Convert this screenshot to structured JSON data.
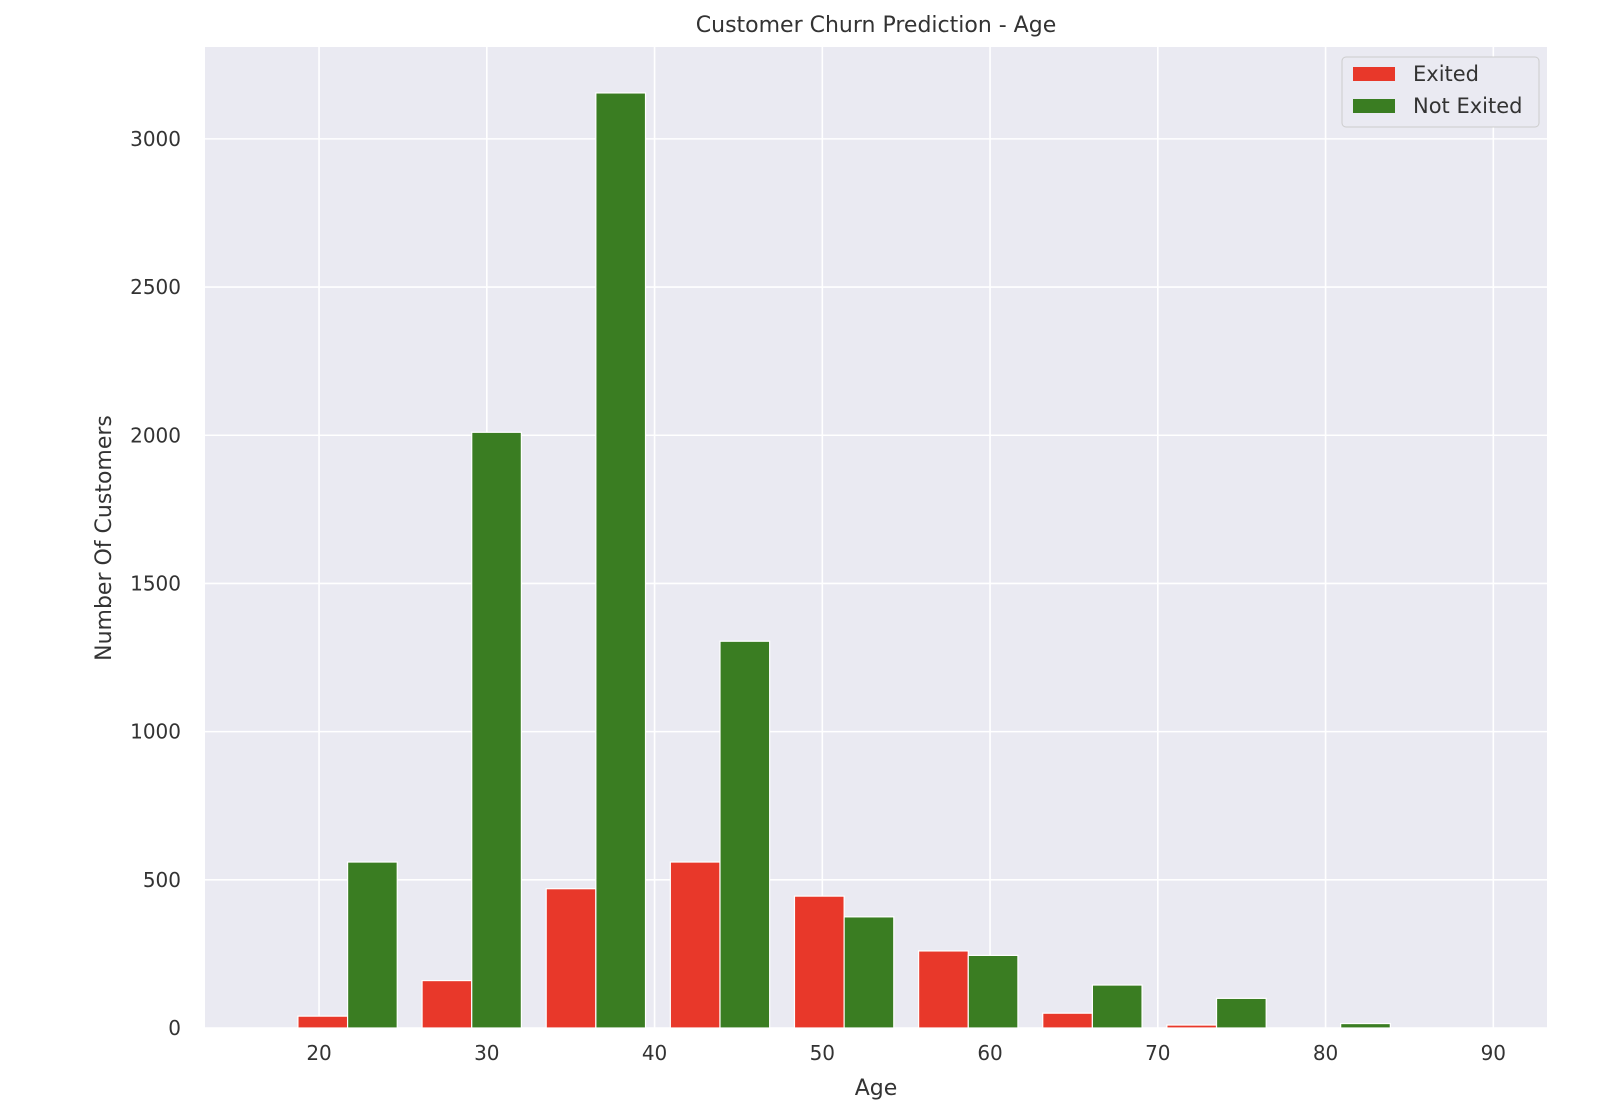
{
  "chart_data": {
    "type": "bar",
    "title": "Customer Churn Prediction - Age",
    "xlabel": "Age",
    "ylabel": "Number Of Customers",
    "bin_edges": [
      18,
      25.4,
      32.8,
      40.2,
      47.6,
      55.0,
      62.4,
      69.8,
      77.2,
      84.6,
      92.0
    ],
    "series": [
      {
        "name": "Exited",
        "color": "#e8382a",
        "values": [
          40,
          160,
          470,
          560,
          445,
          260,
          50,
          10,
          0,
          0
        ]
      },
      {
        "name": "Not Exited",
        "color": "#3a7d22",
        "values": [
          560,
          2010,
          3155,
          1305,
          375,
          245,
          145,
          100,
          15,
          0
        ]
      }
    ],
    "xlim": [
      13.2,
      93.2
    ],
    "ylim": [
      0,
      3310
    ],
    "xticks": [
      20,
      30,
      40,
      50,
      60,
      70,
      80,
      90
    ],
    "yticks": [
      0,
      500,
      1000,
      1500,
      2000,
      2500,
      3000
    ],
    "grid": true,
    "legend_position": "top-right",
    "background_color": "#eaeaf2",
    "grid_color": "#ffffff"
  }
}
